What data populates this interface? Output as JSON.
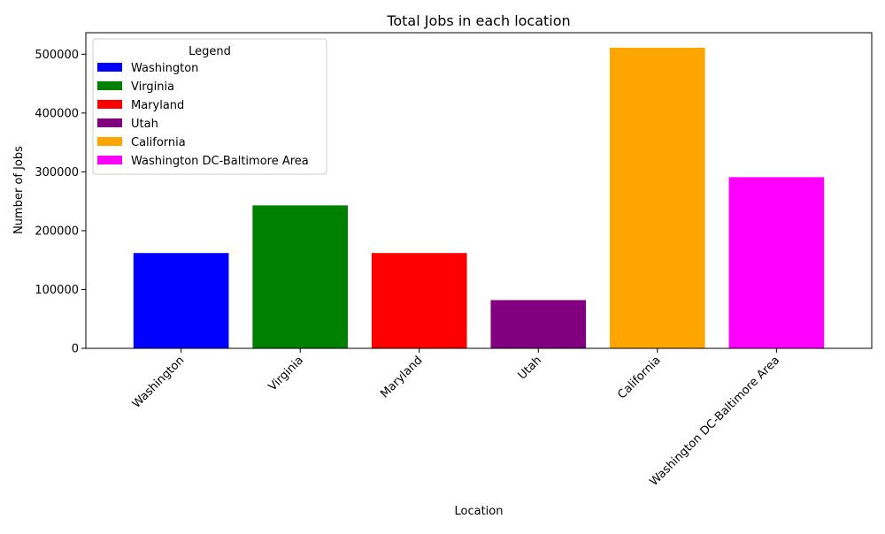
{
  "chart_data": {
    "type": "bar",
    "title": "Total Jobs in each location",
    "xlabel": "Location",
    "ylabel": "Number of Jobs",
    "categories": [
      "Washington",
      "Virginia",
      "Maryland",
      "Utah",
      "California",
      "Washington DC-Baltimore Area"
    ],
    "values": [
      162000,
      243000,
      162000,
      82000,
      511000,
      291000
    ],
    "colors": [
      "#0000ff",
      "#008000",
      "#ff0000",
      "#800080",
      "#ffa500",
      "#ff00ff"
    ],
    "ylim": [
      0,
      536550
    ],
    "yticks": [
      0,
      100000,
      200000,
      300000,
      400000,
      500000
    ],
    "grid": false,
    "legend": {
      "title": "Legend",
      "position": "top-left",
      "entries": [
        "Washington",
        "Virginia",
        "Maryland",
        "Utah",
        "California",
        "Washington DC-Baltimore Area"
      ]
    }
  }
}
